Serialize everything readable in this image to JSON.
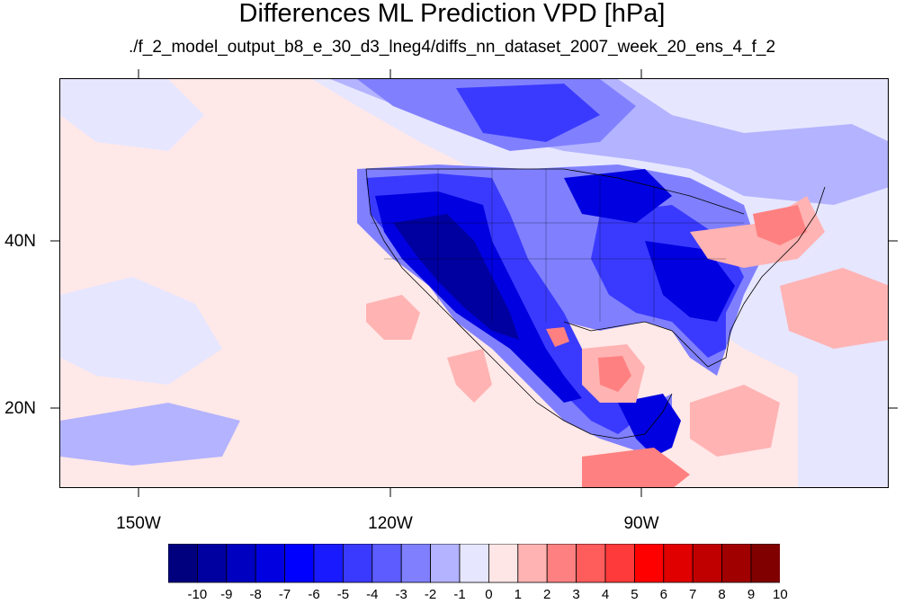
{
  "title": "Differences ML Prediction VPD [hPa]",
  "subtitle": "./f_2_model_output_b8_e_30_d3_lneg4/diffs_nn_dataset_2007_week_20_ens_4_f_2",
  "map": {
    "lat_labels": [
      "40N",
      "20N"
    ],
    "lon_labels": [
      "150W",
      "120W",
      "90W"
    ]
  },
  "colorbar": {
    "labels": [
      "-10",
      "-9",
      "-8",
      "-7",
      "-6",
      "-5",
      "-4",
      "-3",
      "-2",
      "-1",
      "0",
      "1",
      "2",
      "3",
      "4",
      "5",
      "6",
      "7",
      "8",
      "9",
      "10"
    ],
    "colors": [
      "#00007f",
      "#0000a0",
      "#0000c0",
      "#0000e0",
      "#0000ff",
      "#1a1aff",
      "#3a3aff",
      "#5c5cff",
      "#8080ff",
      "#b3b3ff",
      "#e6e6ff",
      "#ffe6e6",
      "#ffb3b3",
      "#ff8080",
      "#ff5c5c",
      "#ff3a3a",
      "#ff0000",
      "#e00000",
      "#c00000",
      "#a00000",
      "#800000"
    ]
  },
  "palette": {
    "ocean_pink": "#ffe8e8",
    "land_pale": "#e6e6ff",
    "blue_light": "#b3b3ff",
    "blue_mid": "#8080ff",
    "blue_strong": "#3a3aff",
    "blue_deep": "#0000e0",
    "blue_darkest": "#0000a0",
    "red_light": "#ffb3b3",
    "red_mid": "#ff8080"
  }
}
